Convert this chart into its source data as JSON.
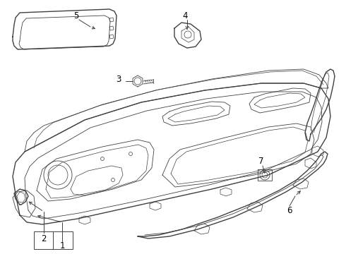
{
  "bg_color": "#ffffff",
  "line_color": "#404040",
  "label_color": "#000000",
  "lw_main": 1.0,
  "lw_thin": 0.6,
  "lw_detail": 0.5
}
